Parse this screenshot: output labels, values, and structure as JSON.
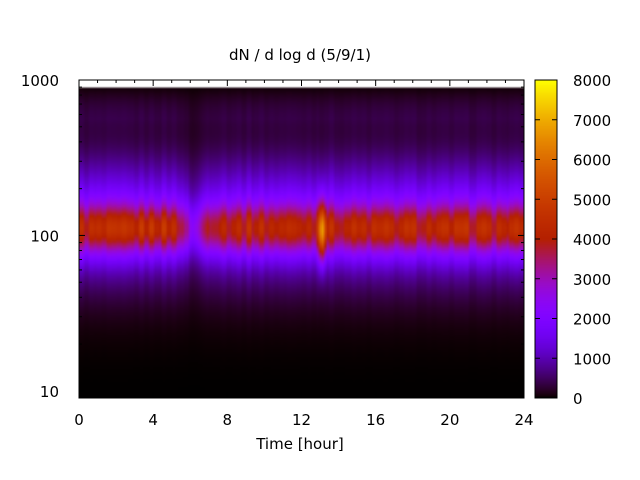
{
  "chart_data": {
    "type": "heatmap",
    "title": "dN / d log d (5/9/1)",
    "xlabel": "Time [hour]",
    "ylabel": "",
    "xlim": [
      0,
      24
    ],
    "ylim": [
      9,
      1000
    ],
    "y_scale": "log",
    "x_ticks": [
      0,
      4,
      8,
      12,
      16,
      20,
      24
    ],
    "x_tick_labels": [
      "0",
      "4",
      "8",
      "12",
      "16",
      "20",
      "24"
    ],
    "y_ticks": [
      10,
      100,
      1000
    ],
    "y_tick_labels": [
      "10",
      "100",
      "1000"
    ],
    "data_y_range": [
      9,
      900
    ],
    "colorbar": {
      "range": [
        0,
        8000
      ],
      "ticks": [
        0,
        1000,
        2000,
        3000,
        4000,
        5000,
        6000,
        7000,
        8000
      ],
      "tick_labels": [
        "0",
        "1000",
        "2000",
        "3000",
        "4000",
        "5000",
        "6000",
        "7000",
        "8000"
      ],
      "palette": "black-purple-red-yellow"
    },
    "features": [
      {
        "desc": "background band",
        "y_peak": 110,
        "value_approx": 4300
      },
      {
        "desc": "spike",
        "x": 13.1,
        "y_peak": 105,
        "value_approx": 7800
      },
      {
        "desc": "dip",
        "x": 6.2,
        "value_approx": 2000
      }
    ],
    "legend": "colorbar-right",
    "grid": false
  }
}
